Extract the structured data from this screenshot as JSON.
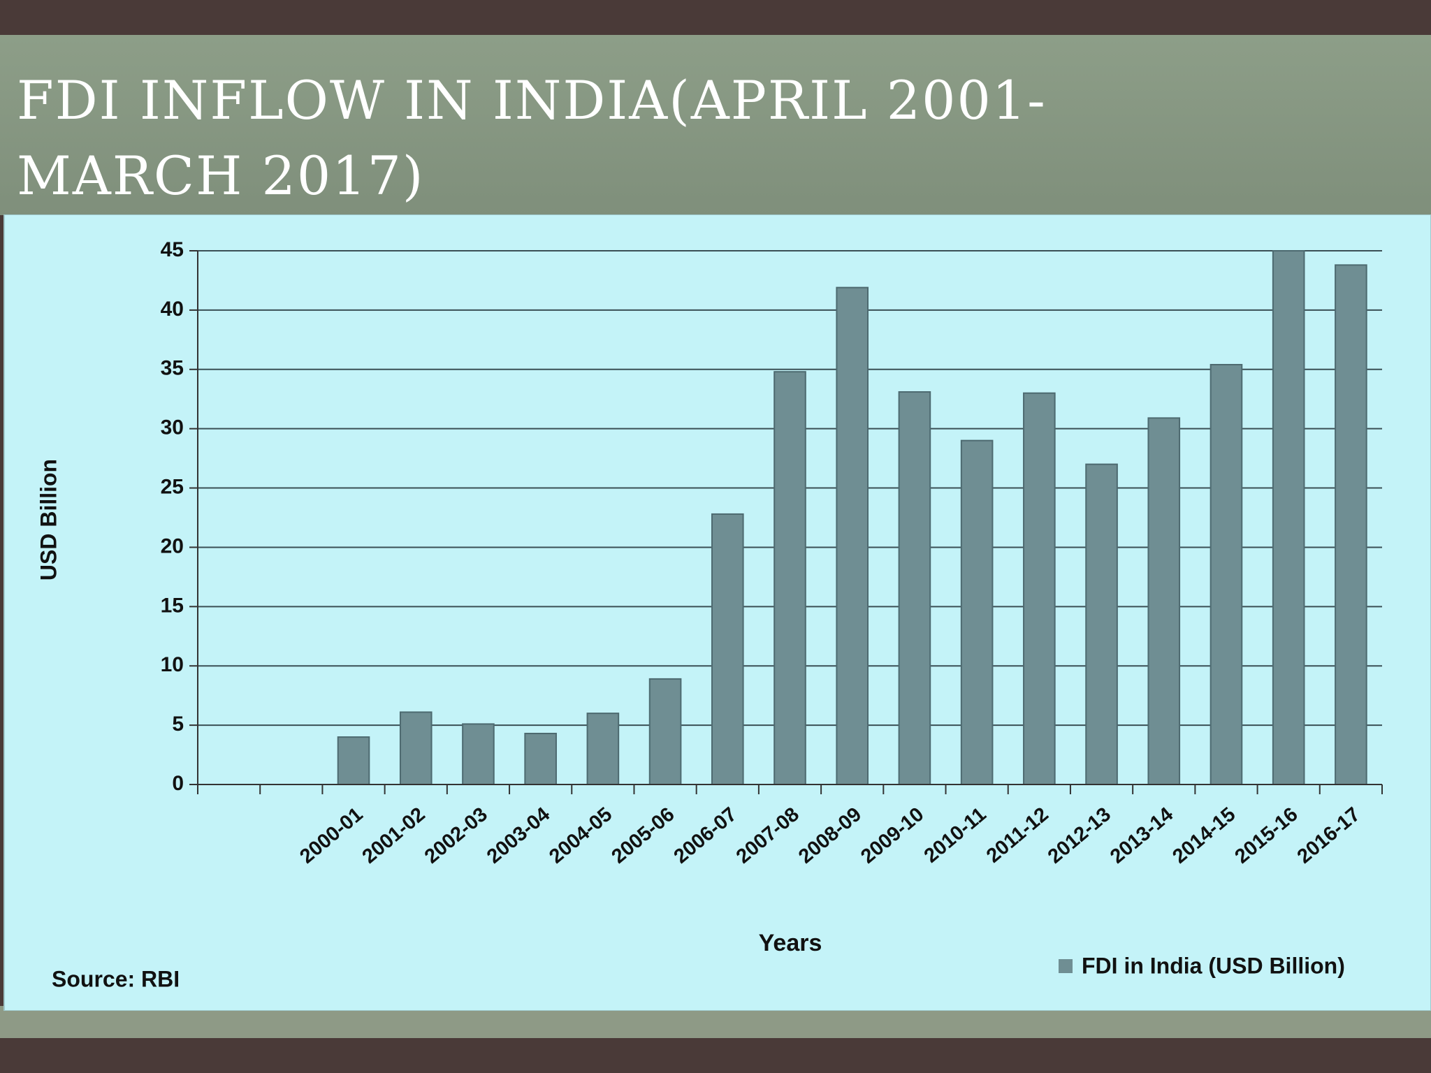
{
  "chart_data": {
    "type": "bar",
    "title": "FDI INFLOW IN INDIA(APRIL 2001-MARCH 2017)",
    "y_label": "USD Billion",
    "x_label": "Years",
    "source": "Source: RBI",
    "categories": [
      null,
      null,
      "2000-01",
      "2001-02",
      "2002-03",
      "2003-04",
      "2004-05",
      "2005-06",
      "2006-07",
      "2007-08",
      "2008-09",
      "2009-10",
      "2010-11",
      "2011-12",
      "2012-13",
      "2013-14",
      "2014-15",
      "2015-16",
      "2016-17"
    ],
    "series": [
      {
        "name": "FDI in India (USD Billion)",
        "color": "#6f8e93",
        "values": [
          null,
          null,
          4.0,
          6.1,
          5.1,
          4.3,
          6.0,
          8.9,
          22.8,
          34.8,
          41.9,
          33.1,
          29.0,
          33.0,
          27.0,
          30.9,
          35.4,
          45.0,
          43.8
        ]
      }
    ],
    "ylim": [
      0,
      45
    ],
    "yticks": [
      0,
      5,
      10,
      15,
      20,
      25,
      30,
      35,
      40,
      45
    ],
    "grid": true,
    "legend": "bottom-right"
  }
}
